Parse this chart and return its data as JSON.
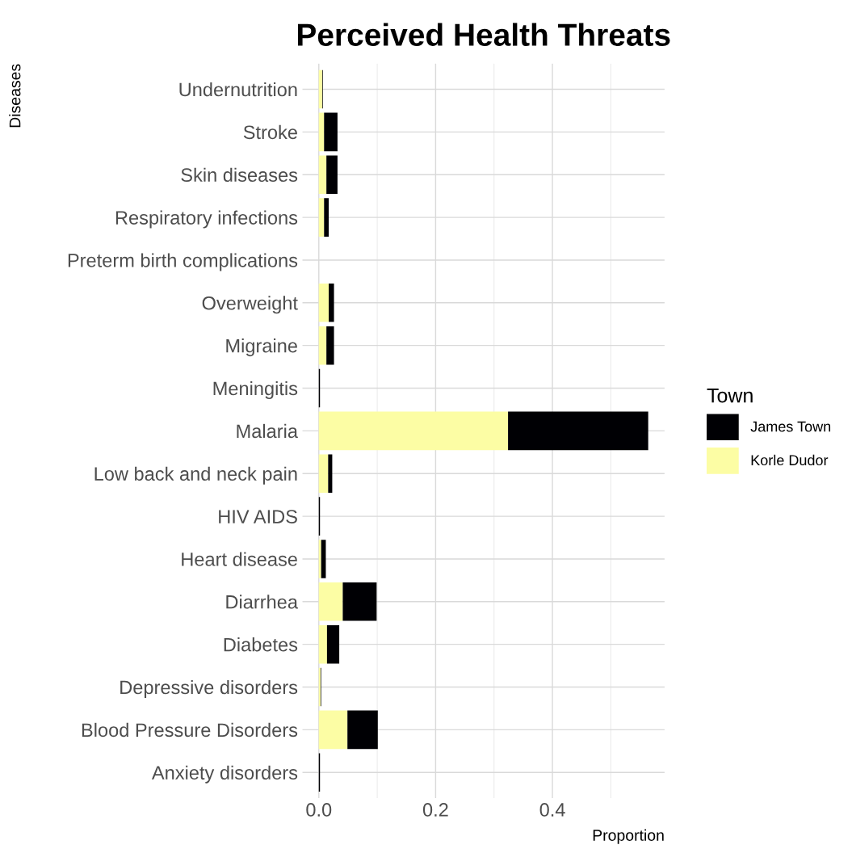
{
  "chart_data": {
    "type": "bar",
    "orientation": "horizontal",
    "stacked": true,
    "title": "Perceived Health Threats",
    "xlabel": "Proportion",
    "ylabel": "Diseases",
    "legend_title": "Town",
    "legend": "right",
    "grid": true,
    "categories": [
      "Undernutrition",
      "Stroke",
      "Skin diseases",
      "Respiratory infections",
      "Preterm birth complications",
      "Overweight",
      "Migraine",
      "Meningitis",
      "Malaria",
      "Low back and neck pain",
      "HIV AIDS",
      "Heart disease",
      "Diarrhea",
      "Diabetes",
      "Depressive disorders",
      "Blood Pressure Disorders",
      "Anxiety disorders"
    ],
    "series": [
      {
        "name": "Korle Dudor",
        "color": "#fcfda4",
        "values": [
          0.006,
          0.009,
          0.013,
          0.009,
          0,
          0.017,
          0.013,
          0,
          0.324,
          0.016,
          0,
          0.004,
          0.041,
          0.014,
          0.003,
          0.049,
          0
        ]
      },
      {
        "name": "James Town",
        "color": "#000004",
        "values": [
          0.001,
          0.023,
          0.019,
          0.008,
          0,
          0.009,
          0.013,
          0.002,
          0.24,
          0.007,
          0.002,
          0.008,
          0.058,
          0.021,
          0.001,
          0.052,
          0.002
        ]
      }
    ],
    "xlim": [
      -0.028,
      0.592
    ],
    "xticks": [
      {
        "value": 0,
        "label": "0.0"
      },
      0.2,
      0.4
    ]
  }
}
